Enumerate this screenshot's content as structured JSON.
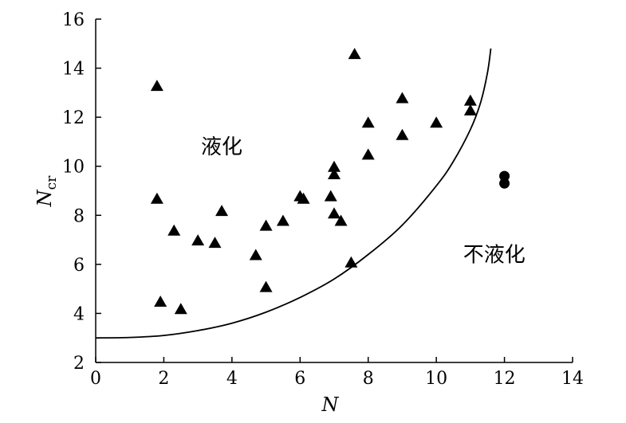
{
  "chart_data": {
    "type": "scatter",
    "xlabel": "N",
    "ylabel_main": "N",
    "ylabel_sub": "cr",
    "xlim": [
      0,
      14
    ],
    "ylim": [
      2,
      16
    ],
    "x_ticks": [
      "0",
      "2",
      "4",
      "6",
      "8",
      "10",
      "12",
      "14"
    ],
    "y_ticks": [
      "2",
      "4",
      "6",
      "8",
      "10",
      "12",
      "14",
      "16"
    ],
    "grid": false,
    "annotations": [
      {
        "text": "液化",
        "x": 3.7,
        "y": 10.8
      },
      {
        "text": "不液化",
        "x": 11.7,
        "y": 6.4
      }
    ],
    "series": [
      {
        "marker": "triangle",
        "points": [
          [
            1.8,
            13.3
          ],
          [
            1.8,
            8.7
          ],
          [
            1.9,
            4.5
          ],
          [
            2.3,
            7.4
          ],
          [
            2.5,
            4.2
          ],
          [
            3.0,
            7.0
          ],
          [
            3.5,
            6.9
          ],
          [
            3.7,
            8.2
          ],
          [
            4.7,
            6.4
          ],
          [
            5.0,
            7.6
          ],
          [
            5.0,
            5.1
          ],
          [
            5.5,
            7.8
          ],
          [
            6.0,
            8.8
          ],
          [
            6.1,
            8.7
          ],
          [
            6.9,
            8.8
          ],
          [
            7.0,
            10.0
          ],
          [
            7.0,
            9.7
          ],
          [
            7.0,
            8.1
          ],
          [
            7.2,
            7.8
          ],
          [
            7.5,
            6.1
          ],
          [
            7.6,
            14.6
          ],
          [
            8.0,
            11.8
          ],
          [
            8.0,
            10.5
          ],
          [
            9.0,
            12.8
          ],
          [
            9.0,
            11.3
          ],
          [
            10.0,
            11.8
          ],
          [
            11.0,
            12.7
          ],
          [
            11.0,
            12.3
          ]
        ]
      },
      {
        "marker": "circle",
        "points": [
          [
            12.0,
            9.6
          ],
          [
            12.0,
            9.3
          ]
        ]
      }
    ],
    "curve": {
      "points": [
        [
          0.0,
          3.0
        ],
        [
          1.0,
          3.02
        ],
        [
          2.0,
          3.1
        ],
        [
          3.0,
          3.3
        ],
        [
          4.0,
          3.6
        ],
        [
          5.0,
          4.05
        ],
        [
          6.0,
          4.65
        ],
        [
          7.0,
          5.4
        ],
        [
          8.0,
          6.4
        ],
        [
          9.0,
          7.6
        ],
        [
          10.0,
          9.2
        ],
        [
          10.5,
          10.2
        ],
        [
          11.0,
          11.5
        ],
        [
          11.3,
          12.6
        ],
        [
          11.5,
          13.8
        ],
        [
          11.6,
          14.8
        ]
      ]
    }
  }
}
